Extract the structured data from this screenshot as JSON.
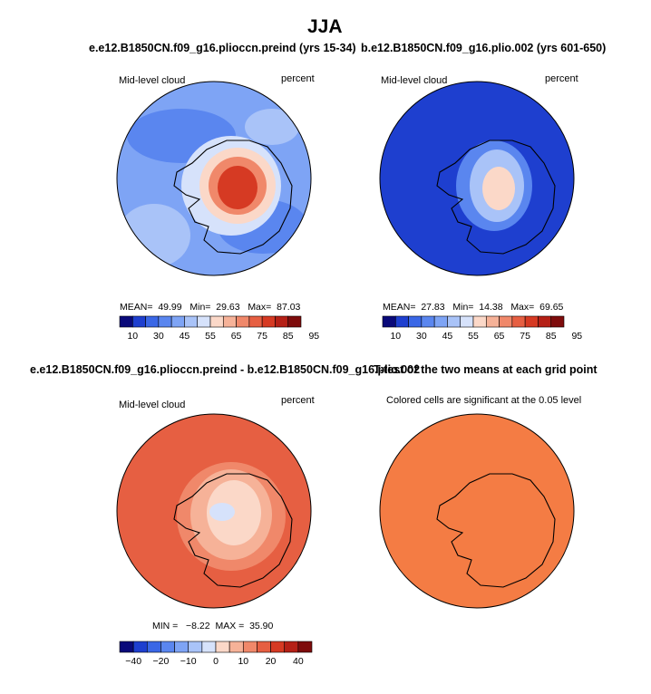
{
  "main_title": "JJA",
  "panels": [
    {
      "title": "e.e12.B1850CN.f09_g16.plioccn.preind (yrs 15-34)",
      "left_label": "Mid-level cloud",
      "right_label": "percent",
      "stats": {
        "mean_label": "MEAN=",
        "mean": "49.99",
        "min_label": "Min=",
        "min": "29.63",
        "max_label": "Max=",
        "max": "87.03"
      },
      "colorbar_ticks": [
        "10",
        "30",
        "45",
        "55",
        "65",
        "75",
        "85",
        "95"
      ],
      "colors": [
        "#0a0a7a",
        "#1e3fcf",
        "#3a67e6",
        "#5a86ef",
        "#7ea4f5",
        "#a9c3f8",
        "#d6e2fb",
        "#fbd8c8",
        "#f6b298",
        "#f0886a",
        "#e65f42",
        "#d63a23",
        "#b52016",
        "#7e0c0c"
      ]
    },
    {
      "title": "b.e12.B1850CN.f09_g16.plio.002 (yrs 601-650)",
      "left_label": "Mid-level cloud",
      "right_label": "percent",
      "stats": {
        "mean_label": "MEAN=",
        "mean": "27.83",
        "min_label": "Min=",
        "min": "14.38",
        "max_label": "Max=",
        "max": "69.65"
      },
      "colorbar_ticks": [
        "10",
        "30",
        "45",
        "55",
        "65",
        "75",
        "85",
        "95"
      ]
    },
    {
      "title": "e.e12.B1850CN.f09_g16.plioccn.preind - b.e12.B1850CN.f09_g16.plio.002",
      "left_label": "Mid-level cloud",
      "right_label": "percent",
      "stats_text": "MIN =   −8.22  MAX =  35.90",
      "colorbar_ticks": [
        "−40",
        "−20",
        "−10",
        "0",
        "10",
        "20",
        "40"
      ]
    },
    {
      "title": "T-test of the two means at each grid point",
      "left_label": "Colored cells are significant at the 0.05 level"
    }
  ],
  "chart_data": [
    {
      "type": "heatmap",
      "title": "e.e12.B1850CN.f09_g16.plioccn.preind (yrs 15-34)",
      "variable": "Mid-level cloud",
      "units": "percent",
      "mean": 49.99,
      "min": 29.63,
      "max": 87.03,
      "levels": [
        10,
        30,
        45,
        55,
        65,
        75,
        85,
        95
      ]
    },
    {
      "type": "heatmap",
      "title": "b.e12.B1850CN.f09_g16.plio.002 (yrs 601-650)",
      "variable": "Mid-level cloud",
      "units": "percent",
      "mean": 27.83,
      "min": 14.38,
      "max": 69.65,
      "levels": [
        10,
        30,
        45,
        55,
        65,
        75,
        85,
        95
      ]
    },
    {
      "type": "heatmap",
      "title": "e.e12.B1850CN.f09_g16.plioccn.preind - b.e12.B1850CN.f09_g16.plio.002",
      "variable": "Mid-level cloud",
      "units": "percent",
      "min": -8.22,
      "max": 35.9,
      "levels": [
        -40,
        -20,
        -10,
        0,
        10,
        20,
        40
      ]
    },
    {
      "type": "heatmap",
      "title": "T-test of the two means at each grid point",
      "note": "Colored cells are significant at the 0.05 level"
    }
  ]
}
